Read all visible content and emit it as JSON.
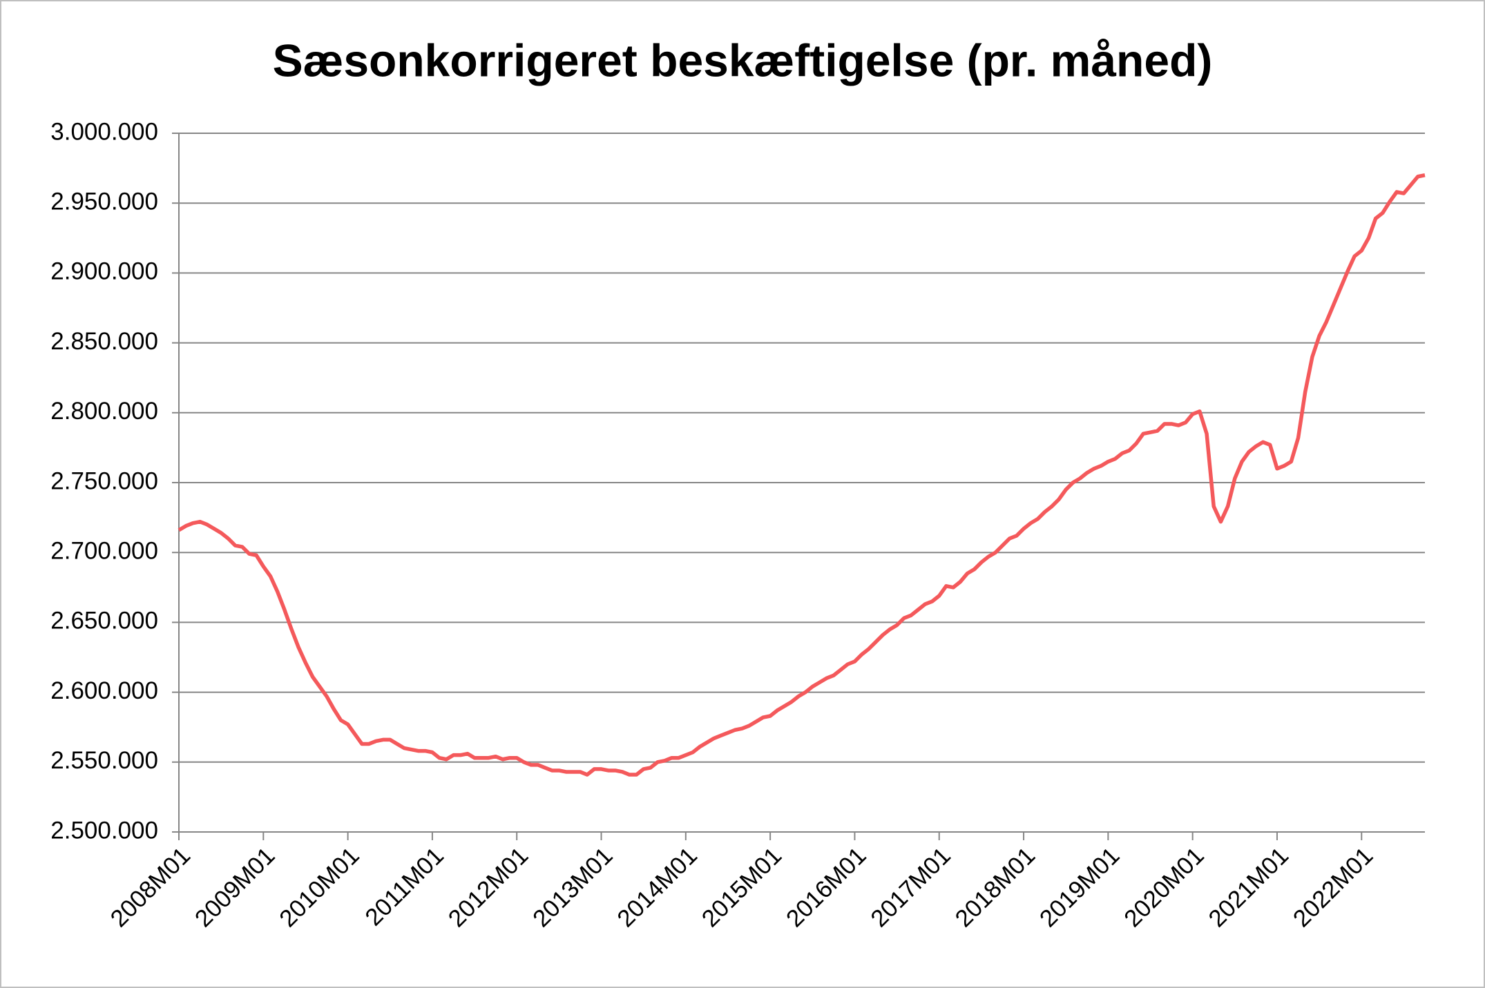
{
  "chart_data": {
    "type": "line",
    "title": "Sæsonkorrigeret beskæftigelse (pr. måned)",
    "categories": [
      "2008M01",
      null,
      null,
      null,
      null,
      null,
      null,
      null,
      null,
      null,
      null,
      null,
      "2009M01",
      null,
      null,
      null,
      null,
      null,
      null,
      null,
      null,
      null,
      null,
      null,
      "2010M01",
      null,
      null,
      null,
      null,
      null,
      null,
      null,
      null,
      null,
      null,
      null,
      "2011M01",
      null,
      null,
      null,
      null,
      null,
      null,
      null,
      null,
      null,
      null,
      null,
      "2012M01",
      null,
      null,
      null,
      null,
      null,
      null,
      null,
      null,
      null,
      null,
      null,
      "2013M01",
      null,
      null,
      null,
      null,
      null,
      null,
      null,
      null,
      null,
      null,
      null,
      "2014M01",
      null,
      null,
      null,
      null,
      null,
      null,
      null,
      null,
      null,
      null,
      null,
      "2015M01",
      null,
      null,
      null,
      null,
      null,
      null,
      null,
      null,
      null,
      null,
      null,
      "2016M01",
      null,
      null,
      null,
      null,
      null,
      null,
      null,
      null,
      null,
      null,
      null,
      "2017M01",
      null,
      null,
      null,
      null,
      null,
      null,
      null,
      null,
      null,
      null,
      null,
      "2018M01",
      null,
      null,
      null,
      null,
      null,
      null,
      null,
      null,
      null,
      null,
      null,
      "2019M01",
      null,
      null,
      null,
      null,
      null,
      null,
      null,
      null,
      null,
      null,
      null,
      "2020M01",
      null,
      null,
      null,
      null,
      null,
      null,
      null,
      null,
      null,
      null,
      null,
      "2021M01",
      null,
      null,
      null,
      null,
      null,
      null,
      null,
      null,
      null,
      null,
      null,
      "2022M01",
      null,
      null,
      null,
      null,
      null,
      null,
      null,
      null,
      null
    ],
    "values": [
      2716000,
      2719000,
      2721000,
      2722000,
      2720000,
      2717000,
      2714000,
      2710000,
      2705000,
      2704000,
      2699000,
      2698000,
      2690000,
      2683000,
      2672000,
      2659000,
      2645000,
      2632000,
      2621000,
      2611000,
      2604000,
      2597000,
      2588000,
      2580000,
      2577000,
      2570000,
      2563000,
      2563000,
      2565000,
      2566000,
      2566000,
      2563000,
      2560000,
      2559000,
      2558000,
      2558000,
      2557000,
      2553000,
      2552000,
      2555000,
      2555000,
      2556000,
      2553000,
      2553000,
      2553000,
      2554000,
      2552000,
      2553000,
      2553000,
      2550000,
      2548000,
      2548000,
      2546000,
      2544000,
      2544000,
      2543000,
      2543000,
      2543000,
      2541000,
      2545000,
      2545000,
      2544000,
      2544000,
      2543000,
      2541000,
      2541000,
      2545000,
      2546000,
      2550000,
      2551000,
      2553000,
      2553000,
      2555000,
      2557000,
      2561000,
      2564000,
      2567000,
      2569000,
      2571000,
      2573000,
      2574000,
      2576000,
      2579000,
      2582000,
      2583000,
      2587000,
      2590000,
      2593000,
      2597000,
      2600000,
      2604000,
      2607000,
      2610000,
      2612000,
      2616000,
      2620000,
      2622000,
      2627000,
      2631000,
      2636000,
      2641000,
      2645000,
      2648000,
      2653000,
      2655000,
      2659000,
      2663000,
      2665000,
      2669000,
      2676000,
      2675000,
      2679000,
      2685000,
      2688000,
      2693000,
      2697000,
      2700000,
      2705000,
      2710000,
      2712000,
      2717000,
      2721000,
      2724000,
      2729000,
      2733000,
      2738000,
      2745000,
      2750000,
      2753000,
      2757000,
      2760000,
      2762000,
      2765000,
      2767000,
      2771000,
      2773000,
      2778000,
      2785000,
      2786000,
      2787000,
      2792000,
      2792000,
      2791000,
      2793000,
      2799000,
      2801000,
      2785000,
      2733000,
      2722000,
      2733000,
      2753000,
      2765000,
      2772000,
      2776000,
      2779000,
      2777000,
      2760000,
      2762000,
      2765000,
      2782000,
      2815000,
      2840000,
      2855000,
      2865000,
      2877000,
      2889000,
      2901000,
      2912000,
      2916000,
      2925000,
      2939000,
      2943000,
      2951000,
      2958000,
      2957000,
      2963000,
      2969000,
      2970000
    ],
    "color": "#f4595b",
    "ylim": [
      2500000,
      3000000
    ],
    "yticks": [
      {
        "value": 2500000,
        "label": "2.500.000"
      },
      {
        "value": 2550000,
        "label": "2.550.000"
      },
      {
        "value": 2600000,
        "label": "2.600.000"
      },
      {
        "value": 2650000,
        "label": "2.650.000"
      },
      {
        "value": 2700000,
        "label": "2.700.000"
      },
      {
        "value": 2750000,
        "label": "2.750.000"
      },
      {
        "value": 2800000,
        "label": "2.800.000"
      },
      {
        "value": 2850000,
        "label": "2.850.000"
      },
      {
        "value": 2900000,
        "label": "2.900.000"
      },
      {
        "value": 2950000,
        "label": "2.950.000"
      },
      {
        "value": 3000000,
        "label": "3.000.000"
      }
    ],
    "grid": true
  }
}
